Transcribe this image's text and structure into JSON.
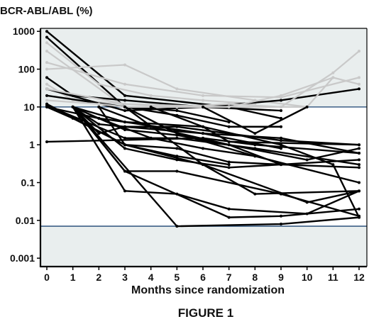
{
  "chart_data": {
    "type": "line",
    "title": "",
    "caption": "FIGURE 1",
    "ylabel": "BCR-ABL/ABL (%)",
    "xlabel": "Months since randomization",
    "x_ticks": [
      0,
      1,
      2,
      3,
      4,
      5,
      6,
      7,
      8,
      9,
      10,
      11,
      12
    ],
    "y_ticks": [
      {
        "value": 1000,
        "label": "1000"
      },
      {
        "value": 100,
        "label": "100"
      },
      {
        "value": 10,
        "label": "10"
      },
      {
        "value": 1,
        "label": "1"
      },
      {
        "value": 0.1,
        "label": "0.1"
      },
      {
        "value": 0.01,
        "label": "0.01"
      },
      {
        "value": 0.001,
        "label": "0.001"
      }
    ],
    "xlim": [
      0,
      12.3
    ],
    "ylim": [
      0.0006,
      1200
    ],
    "y_scale": "log",
    "grid": false,
    "legend": "none",
    "shaded_regions": [
      {
        "from": 10,
        "to": 1200,
        "color": "#e9eeee"
      },
      {
        "from": 0.0006,
        "to": 0.007,
        "color": "#e9eeee"
      }
    ],
    "reference_lines": [
      {
        "y": 10,
        "color": "#3d5f86"
      },
      {
        "y": 0.007,
        "color": "#3d5f86"
      }
    ],
    "colors": {
      "above": "#c9c9c9",
      "below": "#000000",
      "ref": "#3d5f86",
      "band": "#e9eeee"
    },
    "series": [
      {
        "x": [
          0,
          3,
          7,
          9
        ],
        "y": [
          1000,
          20,
          10,
          5
        ]
      },
      {
        "x": [
          0,
          3,
          5,
          7,
          9
        ],
        "y": [
          700,
          10,
          6,
          3,
          3
        ]
      },
      {
        "x": [
          0,
          2,
          4,
          6,
          8
        ],
        "y": [
          500,
          40,
          20,
          15,
          12
        ]
      },
      {
        "x": [
          0,
          3,
          6,
          9
        ],
        "y": [
          300,
          10,
          10,
          10
        ]
      },
      {
        "x": [
          0,
          3,
          6,
          9,
          12
        ],
        "y": [
          150,
          40,
          20,
          18,
          60
        ]
      },
      {
        "x": [
          0,
          3,
          5,
          8,
          10
        ],
        "y": [
          100,
          130,
          30,
          15,
          10
        ]
      },
      {
        "x": [
          0,
          1,
          3,
          6,
          9
        ],
        "y": [
          60,
          20,
          15,
          10,
          8
        ]
      },
      {
        "x": [
          0,
          1,
          3,
          5
        ],
        "y": [
          40,
          15,
          12,
          10
        ]
      },
      {
        "x": [
          0,
          3,
          6,
          9,
          12
        ],
        "y": [
          30,
          8,
          10,
          15,
          30
        ]
      },
      {
        "x": [
          0,
          3,
          7,
          9,
          11
        ],
        "y": [
          30,
          12,
          10,
          20,
          60
        ]
      },
      {
        "x": [
          0,
          3,
          5,
          7
        ],
        "y": [
          20,
          10,
          8,
          4
        ]
      },
      {
        "x": [
          0,
          2,
          3,
          5,
          7
        ],
        "y": [
          15,
          12,
          10,
          10,
          10
        ]
      },
      {
        "x": [
          9,
          11,
          12
        ],
        "y": [
          10,
          80,
          300
        ]
      },
      {
        "x": [
          9,
          10,
          11,
          12
        ],
        "y": [
          10,
          10,
          60,
          40
        ]
      },
      {
        "x": [
          5,
          7,
          9
        ],
        "y": [
          10,
          12,
          10
        ]
      },
      {
        "x": [
          0,
          3,
          5,
          7,
          9
        ],
        "y": [
          12,
          1,
          0.8,
          0.35,
          0.3
        ]
      },
      {
        "x": [
          0,
          3,
          5,
          8,
          12
        ],
        "y": [
          11,
          1.5,
          1.5,
          0.8,
          0.3
        ]
      },
      {
        "x": [
          1,
          3,
          5,
          9,
          12
        ],
        "y": [
          10,
          0.2,
          0.2,
          0.05,
          0.013
        ]
      },
      {
        "x": [
          1,
          2,
          3,
          5,
          9,
          12
        ],
        "y": [
          10,
          2,
          3,
          3,
          1.3,
          1
        ]
      },
      {
        "x": [
          1,
          3,
          5,
          7,
          10,
          12
        ],
        "y": [
          10,
          2.5,
          1.8,
          1,
          0.4,
          0.8
        ]
      },
      {
        "x": [
          1,
          2,
          3,
          6,
          9
        ],
        "y": [
          10,
          3.5,
          3,
          2,
          0.8
        ]
      },
      {
        "x": [
          1,
          3,
          6,
          9,
          12
        ],
        "y": [
          10,
          4,
          2,
          1.5,
          0.6
        ]
      },
      {
        "x": [
          1,
          3,
          5,
          7,
          9,
          12
        ],
        "y": [
          10,
          0.8,
          0.4,
          0.25,
          0.3,
          0.25
        ]
      },
      {
        "x": [
          1,
          3,
          5,
          7,
          10,
          12
        ],
        "y": [
          10,
          0.06,
          0.05,
          0.02,
          0.015,
          0.06
        ]
      },
      {
        "x": [
          1,
          2,
          3,
          6,
          9,
          11,
          12
        ],
        "y": [
          10,
          5,
          4,
          3,
          1,
          0.3,
          0.012
        ]
      },
      {
        "x": [
          1,
          5,
          9,
          12
        ],
        "y": [
          10,
          0.007,
          0.008,
          0.012
        ]
      },
      {
        "x": [
          1,
          3,
          7,
          9,
          12
        ],
        "y": [
          10,
          0.2,
          0.012,
          0.013,
          0.02
        ]
      },
      {
        "x": [
          0,
          1,
          3,
          5,
          7
        ],
        "y": [
          10,
          5,
          1,
          0.5,
          0.3
        ]
      },
      {
        "x": [
          0,
          6,
          8,
          12
        ],
        "y": [
          1.2,
          1.5,
          1,
          0.6
        ]
      },
      {
        "x": [
          2,
          3,
          6,
          8,
          12
        ],
        "y": [
          10,
          1,
          0.3,
          0.05,
          0.06
        ]
      },
      {
        "x": [
          2,
          4,
          7,
          9,
          12
        ],
        "y": [
          10,
          3,
          1,
          0.3,
          0.4
        ]
      },
      {
        "x": [
          3,
          5,
          8,
          12
        ],
        "y": [
          10,
          2,
          0.5,
          0.1
        ]
      },
      {
        "x": [
          3,
          6,
          10,
          12
        ],
        "y": [
          10,
          0.3,
          0.03,
          0.06
        ]
      },
      {
        "x": [
          4,
          6,
          7,
          12
        ],
        "y": [
          10,
          3,
          1.2,
          1
        ]
      },
      {
        "x": [
          6,
          8,
          10
        ],
        "y": [
          10,
          2,
          10
        ]
      },
      {
        "x": [
          0,
          2,
          4,
          6,
          8
        ],
        "y": [
          10,
          5,
          1.5,
          0.8,
          0.5
        ]
      }
    ]
  }
}
